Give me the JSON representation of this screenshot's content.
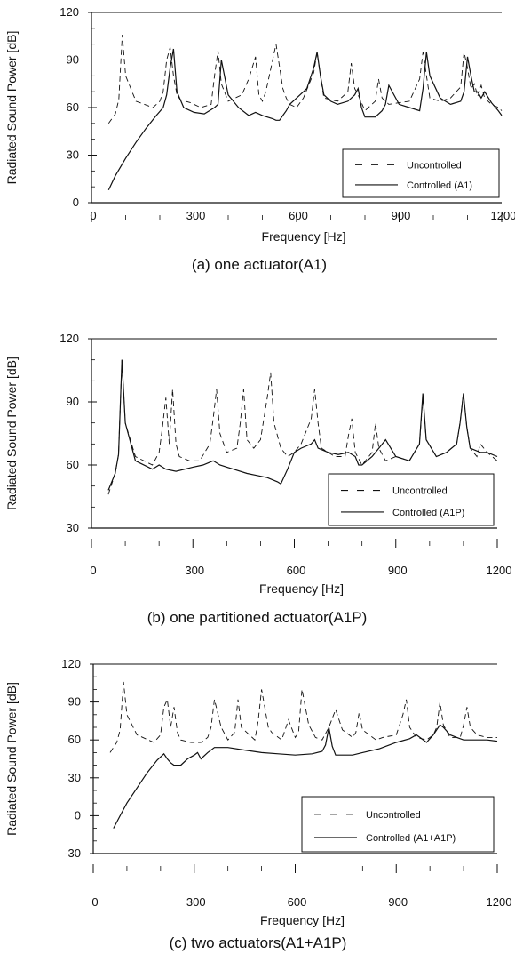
{
  "chart_data": [
    {
      "type": "line",
      "caption": "(a) one actuator(A1)",
      "xlabel": "Frequency [Hz]",
      "ylabel": "Radiated Sound Power [dB]",
      "xlim": [
        0,
        1200
      ],
      "ylim": [
        0,
        120
      ],
      "xticks": [
        0,
        300,
        600,
        900,
        1200
      ],
      "yticks": [
        0,
        30,
        60,
        90,
        120
      ],
      "legend": "bottom-right",
      "series": [
        {
          "name": "Uncontrolled",
          "style": "dashed",
          "x": [
            50,
            70,
            80,
            90,
            100,
            130,
            180,
            200,
            210,
            220,
            230,
            240,
            250,
            260,
            290,
            320,
            350,
            360,
            370,
            380,
            400,
            440,
            460,
            480,
            490,
            500,
            510,
            540,
            560,
            570,
            580,
            600,
            620,
            650,
            660,
            670,
            680,
            720,
            750,
            760,
            770,
            780,
            800,
            830,
            840,
            850,
            870,
            900,
            930,
            960,
            970,
            980,
            990,
            1020,
            1050,
            1080,
            1090,
            1100,
            1110,
            1120,
            1130,
            1140,
            1150,
            1170,
            1190,
            1200
          ],
          "y": [
            50,
            56,
            65,
            106,
            80,
            64,
            60,
            64,
            70,
            90,
            98,
            80,
            68,
            65,
            63,
            60,
            62,
            80,
            96,
            75,
            64,
            68,
            78,
            92,
            68,
            64,
            70,
            100,
            72,
            66,
            62,
            60,
            66,
            82,
            95,
            80,
            66,
            64,
            70,
            88,
            72,
            68,
            58,
            64,
            78,
            66,
            62,
            63,
            64,
            78,
            95,
            80,
            66,
            64,
            66,
            73,
            95,
            85,
            72,
            75,
            67,
            74,
            66,
            62,
            60,
            58
          ]
        },
        {
          "name": "Controlled (A1)",
          "style": "solid",
          "x": [
            50,
            70,
            100,
            130,
            160,
            190,
            210,
            220,
            230,
            240,
            250,
            270,
            300,
            330,
            360,
            370,
            380,
            400,
            430,
            460,
            480,
            500,
            530,
            540,
            550,
            560,
            570,
            580,
            600,
            630,
            650,
            660,
            670,
            680,
            700,
            720,
            750,
            770,
            780,
            790,
            800,
            830,
            850,
            860,
            870,
            900,
            930,
            960,
            970,
            980,
            990,
            1020,
            1050,
            1080,
            1090,
            1100,
            1110,
            1120,
            1130,
            1140,
            1150,
            1170,
            1190,
            1200
          ],
          "y": [
            8,
            17,
            28,
            38,
            47,
            55,
            60,
            68,
            85,
            97,
            70,
            60,
            57,
            56,
            60,
            62,
            90,
            68,
            60,
            55,
            57,
            55,
            53,
            52,
            52,
            55,
            58,
            62,
            66,
            72,
            85,
            95,
            80,
            68,
            64,
            62,
            64,
            68,
            72,
            60,
            54,
            54,
            58,
            62,
            74,
            62,
            60,
            58,
            72,
            95,
            80,
            66,
            62,
            64,
            70,
            92,
            80,
            70,
            70,
            66,
            70,
            63,
            58,
            55
          ]
        }
      ]
    },
    {
      "type": "line",
      "caption": "(b) one partitioned actuator(A1P)",
      "xlabel": "Frequency [Hz]",
      "ylabel": "Radiated Sound Power [dB]",
      "xlim": [
        0,
        1200
      ],
      "ylim": [
        30,
        120
      ],
      "xticks": [
        0,
        300,
        600,
        900,
        1200
      ],
      "yticks": [
        30,
        60,
        90,
        120
      ],
      "legend": "bottom-right",
      "series": [
        {
          "name": "Uncontrolled",
          "style": "dashed",
          "x": [
            50,
            70,
            80,
            90,
            100,
            130,
            180,
            200,
            210,
            220,
            230,
            240,
            250,
            260,
            290,
            320,
            350,
            360,
            370,
            380,
            400,
            430,
            440,
            450,
            460,
            480,
            500,
            510,
            520,
            530,
            540,
            560,
            580,
            600,
            620,
            650,
            660,
            670,
            680,
            720,
            750,
            760,
            770,
            780,
            800,
            830,
            840,
            850,
            870,
            900,
            940,
            970,
            980,
            990,
            1020,
            1050,
            1080,
            1090,
            1100,
            1110,
            1120,
            1140,
            1150,
            1170,
            1200
          ],
          "y": [
            46,
            56,
            65,
            110,
            80,
            64,
            60,
            66,
            78,
            92,
            70,
            96,
            70,
            64,
            62,
            62,
            70,
            82,
            96,
            75,
            66,
            68,
            80,
            96,
            72,
            68,
            72,
            82,
            92,
            104,
            80,
            68,
            64,
            66,
            70,
            82,
            96,
            80,
            68,
            64,
            64,
            74,
            82,
            66,
            60,
            66,
            80,
            68,
            62,
            64,
            62,
            70,
            92,
            72,
            64,
            66,
            70,
            80,
            94,
            78,
            68,
            64,
            70,
            66,
            62
          ]
        },
        {
          "name": "Controlled (A1P)",
          "style": "solid",
          "x": [
            50,
            70,
            80,
            90,
            100,
            130,
            180,
            200,
            220,
            250,
            300,
            330,
            360,
            380,
            420,
            460,
            490,
            520,
            550,
            560,
            580,
            600,
            620,
            650,
            660,
            670,
            700,
            730,
            760,
            780,
            790,
            800,
            830,
            850,
            870,
            900,
            940,
            970,
            980,
            990,
            1020,
            1050,
            1080,
            1090,
            1100,
            1110,
            1120,
            1150,
            1170,
            1200
          ],
          "y": [
            48,
            56,
            65,
            110,
            80,
            62,
            58,
            60,
            58,
            57,
            59,
            60,
            62,
            60,
            58,
            56,
            55,
            54,
            52,
            51,
            58,
            66,
            68,
            70,
            72,
            68,
            66,
            65,
            66,
            64,
            60,
            60,
            64,
            68,
            72,
            64,
            62,
            70,
            94,
            72,
            64,
            66,
            70,
            80,
            94,
            78,
            68,
            66,
            66,
            64
          ]
        }
      ]
    },
    {
      "type": "line",
      "caption": "(c) two actuators(A1+A1P)",
      "xlabel": "Frequency [Hz]",
      "ylabel": "Radiated Sound Power [dB]",
      "xlim": [
        0,
        1200
      ],
      "ylim": [
        -30,
        120
      ],
      "xticks": [
        0,
        300,
        600,
        900,
        1200
      ],
      "yticks": [
        -30,
        0,
        30,
        60,
        90,
        120
      ],
      "legend": "bottom-right",
      "series": [
        {
          "name": "Uncontrolled",
          "style": "dashed",
          "x": [
            50,
            70,
            80,
            90,
            100,
            130,
            180,
            200,
            210,
            220,
            230,
            240,
            250,
            260,
            290,
            320,
            340,
            350,
            360,
            380,
            400,
            420,
            430,
            440,
            480,
            490,
            500,
            520,
            530,
            560,
            580,
            600,
            610,
            620,
            640,
            660,
            680,
            700,
            720,
            740,
            770,
            780,
            790,
            800,
            840,
            860,
            900,
            920,
            930,
            940,
            960,
            990,
            1010,
            1020,
            1030,
            1040,
            1060,
            1090,
            1100,
            1110,
            1120,
            1140,
            1170,
            1200
          ],
          "y": [
            50,
            58,
            68,
            106,
            80,
            64,
            58,
            64,
            86,
            92,
            70,
            86,
            66,
            60,
            58,
            58,
            62,
            70,
            92,
            70,
            60,
            66,
            92,
            70,
            60,
            75,
            100,
            70,
            66,
            60,
            76,
            62,
            66,
            100,
            72,
            62,
            60,
            70,
            84,
            68,
            62,
            66,
            82,
            68,
            60,
            62,
            64,
            80,
            92,
            70,
            62,
            60,
            64,
            70,
            90,
            72,
            62,
            62,
            72,
            86,
            70,
            64,
            62,
            62
          ]
        },
        {
          "name": "Controlled (A1+A1P)",
          "style": "solid",
          "x": [
            60,
            80,
            100,
            130,
            160,
            190,
            210,
            220,
            230,
            240,
            260,
            280,
            300,
            310,
            320,
            340,
            360,
            400,
            450,
            500,
            550,
            600,
            650,
            680,
            690,
            700,
            710,
            720,
            740,
            770,
            800,
            850,
            900,
            940,
            960,
            990,
            1010,
            1020,
            1030,
            1040,
            1060,
            1080,
            1100,
            1140,
            1170,
            1200
          ],
          "y": [
            -10,
            0,
            10,
            22,
            34,
            44,
            49,
            45,
            42,
            40,
            40,
            45,
            48,
            50,
            45,
            50,
            54,
            54,
            52,
            50,
            49,
            48,
            49,
            51,
            56,
            70,
            55,
            48,
            48,
            48,
            50,
            53,
            58,
            61,
            64,
            58,
            64,
            68,
            72,
            70,
            64,
            62,
            60,
            60,
            60,
            59
          ]
        }
      ]
    }
  ]
}
